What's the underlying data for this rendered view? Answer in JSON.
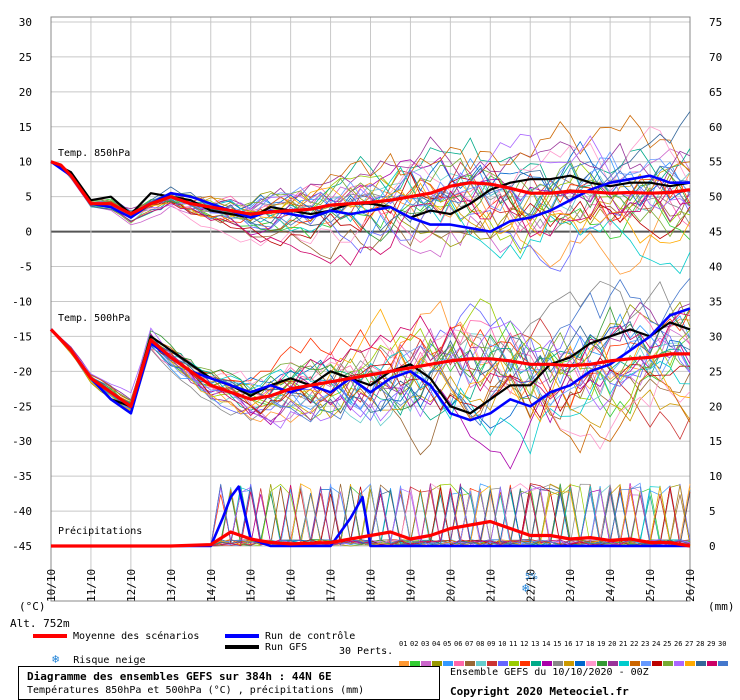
{
  "header": {
    "unit_left": "(°C)",
    "unit_right": "(mm)",
    "altitude": "Alt. 752m"
  },
  "labels": {
    "t850": "Temp. 850hPa",
    "t500": "Temp. 500hPa",
    "precip": "Précipitations",
    "snow_pct": "5%"
  },
  "legend": {
    "mean": "Moyenne des scénarios",
    "control": "Run de contrôle",
    "gfs": "Run GFS",
    "snow": "Risque neige",
    "perts": "30 Perts.",
    "pert_numbers": [
      "01",
      "02",
      "03",
      "04",
      "05",
      "06",
      "07",
      "08",
      "09",
      "10",
      "11",
      "12",
      "13",
      "14",
      "15",
      "16",
      "17",
      "18",
      "19",
      "20",
      "21",
      "22",
      "23",
      "24",
      "25",
      "26",
      "27",
      "28",
      "29",
      "30"
    ]
  },
  "colors": {
    "mean": "#ff0000",
    "control": "#0000ff",
    "gfs": "#000000",
    "snow": "#1a7fd6",
    "pert_colors": [
      "#ff9933",
      "#33cc33",
      "#cc66cc",
      "#999900",
      "#3399ff",
      "#ff66aa",
      "#996633",
      "#66cccc",
      "#cc3333",
      "#6666ff",
      "#99cc00",
      "#ff3300",
      "#00aa88",
      "#aa00aa",
      "#888888",
      "#cc9900",
      "#0066cc",
      "#ff99cc",
      "#339933",
      "#993399",
      "#00cccc",
      "#cc6600",
      "#6699ff",
      "#bb0000",
      "#77aa33",
      "#aa66ff",
      "#ffaa00",
      "#336699",
      "#cc0066",
      "#4477cc"
    ]
  },
  "footer": {
    "title": "Diagramme des ensembles GEFS sur 384h : 44N 6E",
    "subtitle": "Températures 850hPa et 500hPa (°C) , précipitations (mm)",
    "ensemble": "Ensemble GEFS du 10/10/2020 - 00Z",
    "copyright": "Copyright 2020 Meteociel.fr"
  },
  "chart_data": {
    "type": "line",
    "dates": [
      "10/10",
      "11/10",
      "12/10",
      "13/10",
      "14/10",
      "15/10",
      "16/10",
      "17/10",
      "18/10",
      "19/10",
      "20/10",
      "21/10",
      "22/10",
      "23/10",
      "24/10",
      "25/10",
      "26/10"
    ],
    "y_left": {
      "min": -45,
      "max": 30,
      "step": 5,
      "ticks": [
        "30",
        "25",
        "20",
        "15",
        "10",
        "5",
        "0",
        "-5",
        "-10",
        "-15",
        "-20",
        "-25",
        "-30",
        "-35",
        "-40",
        "-45"
      ]
    },
    "y_right": {
      "min": 0,
      "max": 75,
      "step": 5,
      "ticks": [
        "75",
        "70",
        "65",
        "60",
        "55",
        "50",
        "45",
        "40",
        "35",
        "30",
        "25",
        "20",
        "15",
        "10",
        "5",
        "0"
      ]
    },
    "series": [
      {
        "name": "Temp. 850hPa — Moyenne des scénarios",
        "x": [
          0,
          0.25,
          0.5,
          1,
          1.5,
          2,
          2.5,
          3,
          3.5,
          4,
          4.5,
          5,
          5.5,
          6,
          6.5,
          7,
          7.5,
          8,
          8.5,
          9,
          9.5,
          10,
          10.5,
          11,
          11.5,
          12,
          12.5,
          13,
          13.5,
          14,
          14.5,
          15,
          15.5,
          16
        ],
        "values": [
          10,
          9.5,
          8,
          4,
          4,
          2.5,
          4,
          5,
          4,
          3.5,
          3,
          2.5,
          2.8,
          3,
          3.2,
          3.8,
          4,
          4.2,
          4.5,
          5,
          5.5,
          6.5,
          7,
          6.8,
          6.2,
          5.5,
          5.5,
          5.8,
          5.7,
          5.5,
          5.6,
          5.5,
          5.6,
          6
        ]
      },
      {
        "name": "Temp. 850hPa — Run de contrôle",
        "x": [
          0,
          0.5,
          1,
          1.5,
          2,
          2.5,
          3,
          3.5,
          4,
          4.5,
          5,
          5.5,
          6,
          6.5,
          7,
          7.5,
          8,
          8.5,
          9,
          9.5,
          10,
          10.5,
          11,
          11.5,
          12,
          12.5,
          13,
          13.5,
          14,
          14.5,
          15,
          15.5,
          16
        ],
        "values": [
          10,
          8,
          4,
          3.5,
          2,
          4,
          5.5,
          5,
          4,
          3,
          2,
          3,
          2.5,
          2,
          3,
          2.5,
          3,
          3.5,
          2,
          1,
          1,
          0.5,
          0,
          1.5,
          2,
          3,
          4.5,
          6,
          7,
          7.5,
          8,
          7,
          7
        ]
      },
      {
        "name": "Temp. 850hPa — Run GFS",
        "x": [
          0,
          0.5,
          1,
          1.5,
          2,
          2.5,
          3,
          3.5,
          4,
          4.5,
          5,
          5.5,
          6,
          6.5,
          7,
          7.5,
          8,
          8.5,
          9,
          9.5,
          10,
          10.5,
          11,
          11.5,
          12,
          12.5,
          13,
          13.5,
          14,
          14.5,
          15,
          15.5,
          16
        ],
        "values": [
          10,
          8.5,
          4.5,
          5,
          2.5,
          5.5,
          5,
          4.5,
          3,
          2.5,
          2,
          3.5,
          3,
          2.5,
          3,
          4,
          4,
          3.5,
          2,
          3,
          2.5,
          4,
          6,
          7,
          7.5,
          7.5,
          8,
          7,
          6.5,
          7,
          7,
          6.5,
          7
        ]
      },
      {
        "name": "Temp. 500hPa — Moyenne des scénarios",
        "x": [
          0,
          0.5,
          1,
          1.5,
          2,
          2.5,
          3,
          3.5,
          4,
          4.5,
          5,
          5.5,
          6,
          6.5,
          7,
          7.5,
          8,
          8.5,
          9,
          9.5,
          10,
          10.5,
          11,
          11.5,
          12,
          12.5,
          13,
          13.5,
          14,
          14.5,
          15,
          15.5,
          16
        ],
        "values": [
          -14,
          -17,
          -21,
          -23,
          -25,
          -15.5,
          -18,
          -20,
          -22,
          -23,
          -24,
          -23.5,
          -22.5,
          -22,
          -21.5,
          -21,
          -20.5,
          -20,
          -19.5,
          -19,
          -18.5,
          -18.2,
          -18.2,
          -18.5,
          -19,
          -19,
          -19.2,
          -19,
          -18.5,
          -18.2,
          -18,
          -17.5,
          -17.5
        ]
      },
      {
        "name": "Temp. 500hPa — Run de contrôle",
        "x": [
          0,
          0.5,
          1,
          1.5,
          2,
          2.5,
          3,
          3.5,
          4,
          4.5,
          5,
          5.5,
          6,
          6.5,
          7,
          7.5,
          8,
          8.5,
          9,
          9.5,
          10,
          10.5,
          11,
          11.5,
          12,
          12.5,
          13,
          13.5,
          14,
          14.5,
          15,
          15.5,
          16
        ],
        "values": [
          -14,
          -17,
          -21,
          -24,
          -26,
          -16,
          -18,
          -20,
          -21,
          -22,
          -23,
          -22,
          -23,
          -22,
          -23,
          -21,
          -23,
          -21,
          -20,
          -22,
          -26,
          -27,
          -26,
          -24,
          -25,
          -23,
          -22,
          -20,
          -19,
          -17,
          -15,
          -12,
          -11
        ]
      },
      {
        "name": "Temp. 500hPa — Run GFS",
        "x": [
          0,
          0.5,
          1,
          1.5,
          2,
          2.5,
          3,
          3.5,
          4,
          4.5,
          5,
          5.5,
          6,
          6.5,
          7,
          7.5,
          8,
          8.5,
          9,
          9.5,
          10,
          10.5,
          11,
          11.5,
          12,
          12.5,
          13,
          13.5,
          14,
          14.5,
          15,
          15.5,
          16
        ],
        "values": [
          -14,
          -17,
          -21,
          -24,
          -25,
          -15,
          -17,
          -19,
          -21,
          -22,
          -23.5,
          -22,
          -21,
          -22,
          -20,
          -21,
          -22,
          -20,
          -19,
          -21,
          -25,
          -26,
          -24,
          -22,
          -22,
          -19,
          -18,
          -16,
          -15,
          -14,
          -15,
          -13,
          -14
        ]
      },
      {
        "name": "Précipitations — Moyenne des scénarios (mm)",
        "x": [
          0,
          1,
          2,
          3,
          4,
          4.5,
          5,
          5.5,
          6,
          6.5,
          7,
          7.5,
          8,
          8.5,
          9,
          9.5,
          10,
          10.5,
          11,
          11.5,
          12,
          12.5,
          13,
          13.5,
          14,
          14.5,
          15,
          15.5,
          16
        ],
        "values": [
          0,
          0,
          0,
          0,
          0.2,
          2,
          1,
          0.5,
          0.3,
          0.4,
          0.5,
          1,
          1.5,
          2,
          1,
          1.5,
          2.5,
          3,
          3.5,
          2.5,
          1.5,
          1.5,
          1,
          1.2,
          0.8,
          1,
          0.5,
          0.5,
          0
        ]
      },
      {
        "name": "Précipitations — Run de contrôle (mm)",
        "x": [
          0,
          1,
          2,
          3,
          4,
          4.3,
          4.5,
          4.7,
          5,
          5.5,
          6,
          7,
          7.5,
          7.8,
          8,
          9,
          10,
          11,
          12,
          13,
          14,
          15,
          16
        ],
        "values": [
          0,
          0,
          0,
          0,
          0,
          4,
          7,
          8.5,
          1,
          0,
          0,
          0,
          4,
          7,
          0,
          0,
          0,
          0,
          0,
          0,
          0,
          0,
          0
        ]
      }
    ],
    "annotations": [
      "Temp. 850hPa",
      "Temp. 500hPa",
      "Précipitations"
    ],
    "grid": true,
    "legend_position": "bottom"
  }
}
